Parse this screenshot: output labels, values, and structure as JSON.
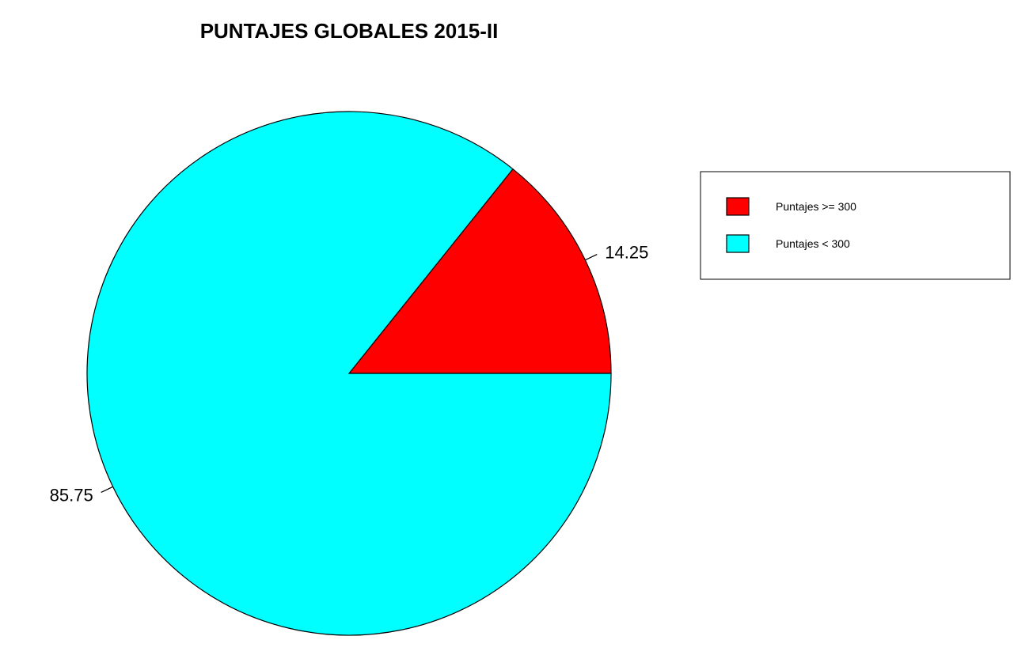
{
  "chart_data": {
    "type": "pie",
    "title": "PUNTAJES GLOBALES 2015-II",
    "slices": [
      {
        "label": "14.25",
        "value": 14.25,
        "color": "#ff0000",
        "legend": "Puntajes >= 300"
      },
      {
        "label": "85.75",
        "value": 85.75,
        "color": "#00ffff",
        "legend": "Puntajes < 300"
      }
    ],
    "start_angle_deg": 0,
    "direction": "counterclockwise",
    "legend_position": "right"
  }
}
